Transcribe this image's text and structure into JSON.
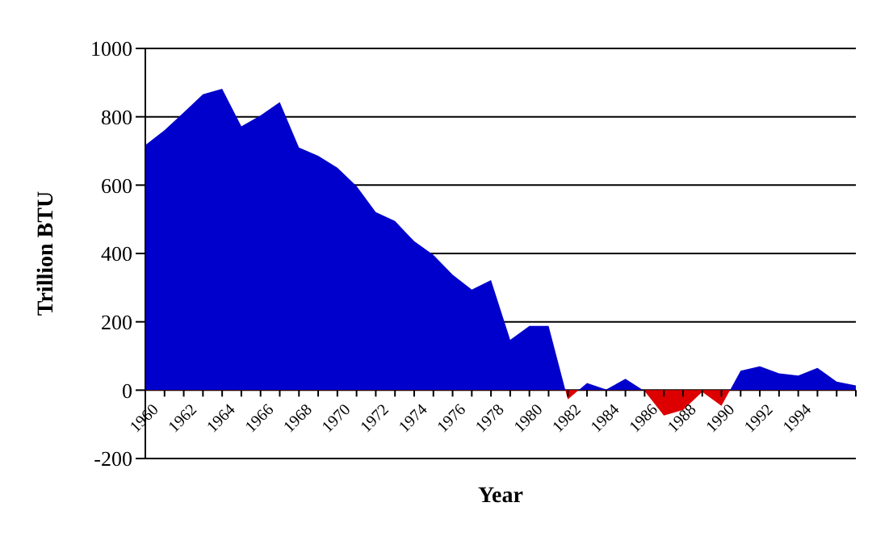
{
  "chart_data": {
    "type": "area",
    "xlabel": "Year",
    "ylabel": "Trillion BTU",
    "categories": [
      "1960",
      null,
      "1962",
      null,
      "1964",
      null,
      "1966",
      null,
      "1968",
      null,
      "1970",
      null,
      "1972",
      null,
      "1974",
      null,
      "1976",
      null,
      "1978",
      null,
      "1980",
      null,
      "1982",
      null,
      "1984",
      null,
      "1986",
      null,
      "1988",
      null,
      "1990",
      null,
      "1992",
      null,
      "1994",
      null,
      null,
      null
    ],
    "series": [
      {
        "values": [
          717,
          761,
          813,
          866,
          882,
          772,
          804,
          843,
          710,
          686,
          651,
          597,
          521,
          495,
          436,
          396,
          338,
          294,
          322,
          147,
          188,
          188,
          -27,
          21,
          2,
          33,
          -3,
          -74,
          -58,
          -5,
          -46,
          57,
          70,
          49,
          43,
          65,
          25,
          14
        ],
        "colors": [
          "#0000cc",
          "#0000cc",
          "#0000cc",
          "#0000cc",
          "#0000cc",
          "#0000cc",
          "#0000cc",
          "#0000cc",
          "#0000cc",
          "#0000cc",
          "#0000cc",
          "#0000cc",
          "#0000cc",
          "#0000cc",
          "#0000cc",
          "#0000cc",
          "#0000cc",
          "#0000cc",
          "#0000cc",
          "#0000cc",
          "#0000cc",
          "#0000cc",
          "#dd0000",
          "#0000cc",
          "#0000cc",
          "#0000cc",
          "#dd0000",
          "#dd0000",
          "#dd0000",
          "#dd0000",
          "#dd0000",
          "#0000cc",
          "#0000cc",
          "#0000cc",
          "#0000cc",
          "#0000cc",
          "#0000cc",
          "#0000cc"
        ]
      }
    ],
    "ylim": [
      -200,
      1000
    ],
    "yticks": [
      -200,
      0,
      200,
      400,
      600,
      800,
      1000
    ],
    "grid": "y"
  }
}
